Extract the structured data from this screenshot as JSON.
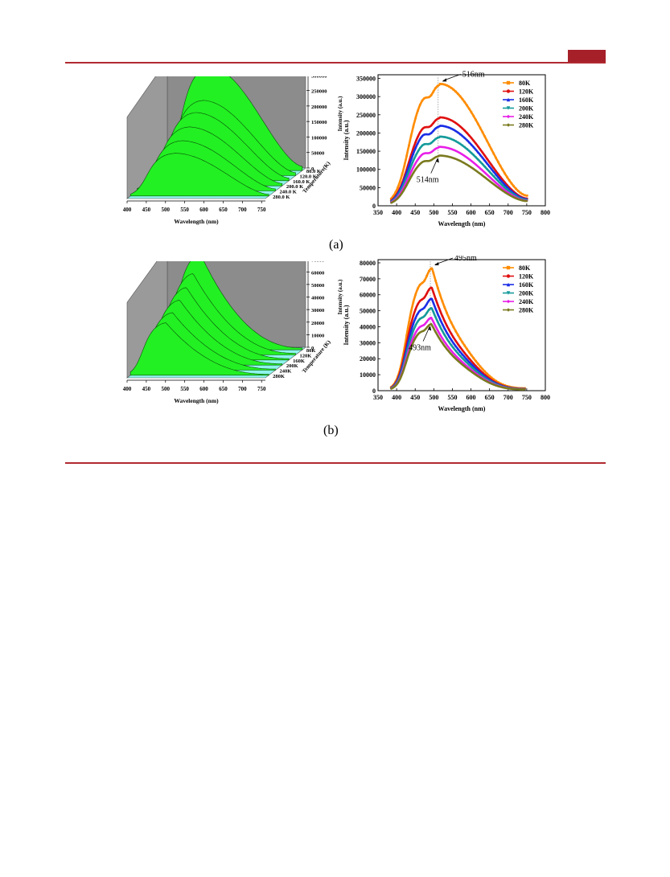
{
  "page": {
    "panel_labels": [
      "(a)",
      "(b)"
    ]
  },
  "chart_data": [
    {
      "type": "line",
      "panel": "(a) 3D",
      "xlabel": "Wavelength (nm)",
      "ylabel": "Intensity (a.u.)",
      "zlabel": "Temperature(K)",
      "x_ticks": [
        400,
        450,
        500,
        550,
        600,
        650,
        700,
        750
      ],
      "y_ticks": [
        0,
        50000,
        100000,
        150000,
        200000,
        250000,
        300000,
        350000
      ],
      "y_tick_labels": [
        "0",
        "50000",
        "100000",
        "150000",
        "200000",
        "250000",
        "300000",
        "350000"
      ],
      "z_tick_labels": [
        "80.0 K",
        "120.0 K",
        "160.0 K",
        "200.0 K",
        "240.0 K",
        "280.0 K"
      ],
      "ylim": [
        0,
        350000
      ],
      "xlim": [
        400,
        760
      ],
      "series": [
        {
          "name": "80.0 K",
          "peak_x": 516,
          "peak_y": 335000
        },
        {
          "name": "120.0 K",
          "peak_x": 516,
          "peak_y": 243000
        },
        {
          "name": "160.0 K",
          "peak_x": 515,
          "peak_y": 220000
        },
        {
          "name": "200.0 K",
          "peak_x": 515,
          "peak_y": 190000
        },
        {
          "name": "240.0 K",
          "peak_x": 514,
          "peak_y": 162000
        },
        {
          "name": "280.0 K",
          "peak_x": 514,
          "peak_y": 138000
        }
      ],
      "colors": {
        "fill": "#22f022",
        "wall": "#8c8c8c",
        "floor": "#8ef4ec"
      }
    },
    {
      "type": "line",
      "panel": "(a) 2D",
      "xlabel": "Wavelength (nm)",
      "ylabel": "Intensity (a.u.)",
      "x_ticks": [
        350,
        400,
        450,
        500,
        550,
        600,
        650,
        700,
        750,
        800
      ],
      "y_ticks": [
        0,
        50000,
        100000,
        150000,
        200000,
        250000,
        300000,
        350000
      ],
      "y_tick_labels": [
        "0",
        "50000",
        "100000",
        "150000",
        "200000",
        "250000",
        "300000",
        "350000"
      ],
      "xlim": [
        350,
        800
      ],
      "ylim": [
        0,
        360000
      ],
      "annotations": [
        {
          "text": "516nm",
          "x": 516,
          "y": 335000
        },
        {
          "text": "514nm",
          "x": 514,
          "y": 138000
        }
      ],
      "series": [
        {
          "name": "80K",
          "color": "#ff8c00",
          "peak_x": 516,
          "peak_y": 335000,
          "shoulder_y": 288000,
          "end_y": 28000
        },
        {
          "name": "120K",
          "color": "#e01010",
          "peak_x": 516,
          "peak_y": 243000,
          "shoulder_y": 212000,
          "end_y": 20000
        },
        {
          "name": "160K",
          "color": "#1a2ee6",
          "peak_x": 515,
          "peak_y": 220000,
          "shoulder_y": 195000,
          "end_y": 18000
        },
        {
          "name": "200K",
          "color": "#159a9a",
          "peak_x": 515,
          "peak_y": 190000,
          "shoulder_y": 168000,
          "end_y": 16000
        },
        {
          "name": "240K",
          "color": "#e81ee8",
          "peak_x": 514,
          "peak_y": 162000,
          "shoulder_y": 142000,
          "end_y": 14000
        },
        {
          "name": "280K",
          "color": "#7a7a20",
          "peak_x": 514,
          "peak_y": 138000,
          "shoulder_y": 120000,
          "end_y": 13000
        }
      ]
    },
    {
      "type": "line",
      "panel": "(b) 3D",
      "xlabel": "Wavelength (nm)",
      "ylabel": "Intensity (a.u.)",
      "zlabel": "Temperature (K)",
      "x_ticks": [
        400,
        450,
        500,
        550,
        600,
        650,
        700,
        750
      ],
      "y_ticks": [
        0,
        10000,
        20000,
        30000,
        40000,
        50000,
        60000,
        70000,
        80000
      ],
      "y_tick_labels": [
        "0",
        "10000",
        "20000",
        "30000",
        "40000",
        "50000",
        "60000",
        "70000",
        "80000"
      ],
      "z_tick_labels": [
        "80K",
        "120K",
        "160K",
        "200K",
        "240K",
        "280K"
      ],
      "ylim": [
        0,
        80000
      ],
      "xlim": [
        400,
        760
      ],
      "series": [
        {
          "name": "80K",
          "peak_x": 495,
          "peak_y": 77000
        },
        {
          "name": "120K",
          "peak_x": 494,
          "peak_y": 65000
        },
        {
          "name": "160K",
          "peak_x": 494,
          "peak_y": 58000
        },
        {
          "name": "200K",
          "peak_x": 494,
          "peak_y": 52000
        },
        {
          "name": "240K",
          "peak_x": 493,
          "peak_y": 46000
        },
        {
          "name": "280K",
          "peak_x": 493,
          "peak_y": 42000
        }
      ],
      "colors": {
        "fill": "#22f022",
        "wall": "#8c8c8c",
        "floor": "#8ef4ec"
      }
    },
    {
      "type": "line",
      "panel": "(b) 2D",
      "xlabel": "Wavelength (nm)",
      "ylabel": "Intensity (a.u.)",
      "x_ticks": [
        350,
        400,
        450,
        500,
        550,
        600,
        650,
        700,
        750,
        800
      ],
      "y_ticks": [
        0,
        10000,
        20000,
        30000,
        40000,
        50000,
        60000,
        70000,
        80000
      ],
      "y_tick_labels": [
        "0",
        "10000",
        "20000",
        "30000",
        "40000",
        "50000",
        "60000",
        "70000",
        "80000"
      ],
      "xlim": [
        350,
        800
      ],
      "ylim": [
        0,
        82000
      ],
      "annotations": [
        {
          "text": "495nm",
          "x": 495,
          "y": 77000
        },
        {
          "text": "493nm",
          "x": 493,
          "y": 42000
        }
      ],
      "series": [
        {
          "name": "80K",
          "color": "#ff8c00",
          "peak_x": 495,
          "peak_y": 77000,
          "shoulder_y": 66000,
          "end_y": 1500
        },
        {
          "name": "120K",
          "color": "#e01010",
          "peak_x": 494,
          "peak_y": 65000,
          "shoulder_y": 57000,
          "end_y": 1200
        },
        {
          "name": "160K",
          "color": "#1a2ee6",
          "peak_x": 494,
          "peak_y": 58000,
          "shoulder_y": 51000,
          "end_y": 1100
        },
        {
          "name": "200K",
          "color": "#159a9a",
          "peak_x": 494,
          "peak_y": 52000,
          "shoulder_y": 45000,
          "end_y": 1000
        },
        {
          "name": "240K",
          "color": "#e81ee8",
          "peak_x": 493,
          "peak_y": 46000,
          "shoulder_y": 40000,
          "end_y": 900
        },
        {
          "name": "280K",
          "color": "#7a7a20",
          "peak_x": 493,
          "peak_y": 42000,
          "shoulder_y": 37000,
          "end_y": 800
        }
      ]
    }
  ]
}
